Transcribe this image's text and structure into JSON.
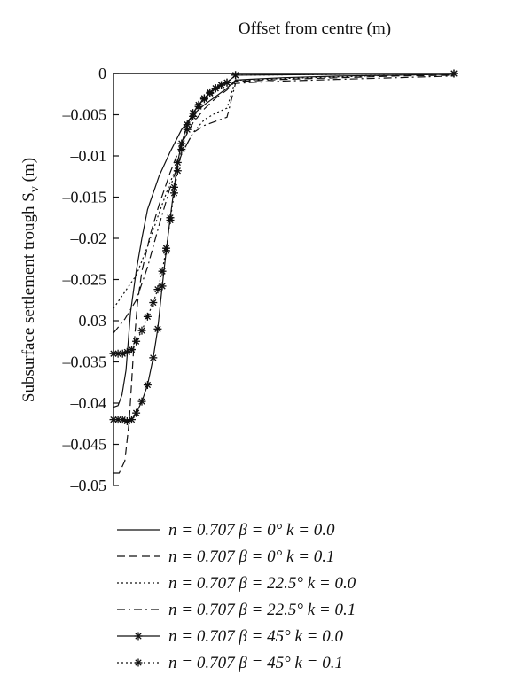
{
  "chart_data": {
    "type": "line",
    "title": "",
    "xlabel": "Offset from centre (m)",
    "ylabel_main": "Subsurface settlement trough S",
    "ylabel_sub": "v",
    "ylabel_unit": " (m)",
    "x_axis_position": "top",
    "xticks_shown": false,
    "xlim": [
      0,
      60
    ],
    "ylim": [
      -0.05,
      0
    ],
    "yticks": [
      0,
      -0.005,
      -0.01,
      -0.015,
      -0.02,
      -0.025,
      -0.03,
      -0.035,
      -0.04,
      -0.045,
      -0.05
    ],
    "ytick_labels": [
      "0",
      "–0.005",
      "–0.01",
      "–0.015",
      "–0.02",
      "–0.025",
      "–0.03",
      "–0.035",
      "–0.04",
      "–0.045",
      "–0.05"
    ],
    "grid": false,
    "legend_position": "bottom",
    "series": [
      {
        "name": "n = 0.707 β = 0° k = 0.0",
        "style": "solid",
        "marker": "none",
        "x": [
          0,
          0.8,
          1.5,
          2.2,
          3,
          4,
          5,
          6,
          8,
          10,
          12,
          14,
          16,
          18,
          20,
          21.5,
          24,
          30,
          40,
          50,
          60
        ],
        "y": [
          -0.0405,
          -0.0403,
          -0.039,
          -0.036,
          -0.029,
          -0.024,
          -0.02,
          -0.0165,
          -0.0125,
          -0.0095,
          -0.0068,
          -0.005,
          -0.0038,
          -0.0028,
          -0.0018,
          -0.0008,
          -0.0007,
          -0.0005,
          -0.0003,
          -0.0002,
          -0.0001
        ]
      },
      {
        "name": "n = 0.707 β = 0° k = 0.1",
        "style": "dashed",
        "marker": "none",
        "x": [
          0,
          1,
          2,
          2.8,
          3.5,
          4.2,
          5,
          6.5,
          8,
          10,
          12,
          14,
          16,
          18,
          20,
          21.5,
          24,
          30,
          40,
          50,
          60
        ],
        "y": [
          -0.0485,
          -0.0485,
          -0.047,
          -0.042,
          -0.034,
          -0.028,
          -0.024,
          -0.0195,
          -0.016,
          -0.012,
          -0.0085,
          -0.006,
          -0.0043,
          -0.003,
          -0.002,
          -0.0009,
          -0.0009,
          -0.0007,
          -0.0005,
          -0.0003,
          -0.0002
        ]
      },
      {
        "name": "n = 0.707 β = 22.5° k = 0.0",
        "style": "dotted",
        "marker": "none",
        "x": [
          0,
          2,
          4,
          6,
          8,
          10,
          12,
          14,
          16,
          18,
          20,
          21.5,
          24,
          30,
          40,
          50,
          60
        ],
        "y": [
          -0.0285,
          -0.0265,
          -0.0245,
          -0.021,
          -0.017,
          -0.0132,
          -0.0098,
          -0.0072,
          -0.0056,
          -0.0048,
          -0.0042,
          -0.0008,
          -0.0008,
          -0.0006,
          -0.0004,
          -0.0002,
          -0.0001
        ]
      },
      {
        "name": "n = 0.707 β = 22.5° k = 0.1",
        "style": "dashdot",
        "marker": "none",
        "x": [
          0,
          2,
          4,
          6,
          8,
          10,
          12,
          14,
          16,
          18,
          20,
          21.5,
          24,
          30,
          40,
          50,
          60
        ],
        "y": [
          -0.0315,
          -0.0298,
          -0.0275,
          -0.0235,
          -0.0185,
          -0.0138,
          -0.0098,
          -0.0072,
          -0.0063,
          -0.0058,
          -0.0053,
          -0.0012,
          -0.0011,
          -0.0009,
          -0.0007,
          -0.0005,
          -0.0003
        ]
      },
      {
        "name": "n = 0.707 β = 45° k = 0.0",
        "style": "solid",
        "marker": "star",
        "x": [
          0,
          0.8,
          1.6,
          2.4,
          3.2,
          4,
          5,
          6,
          7,
          7.8,
          8.6,
          9.3,
          10,
          10.7,
          11.3,
          12,
          13,
          14,
          15,
          16,
          17,
          18,
          19,
          20,
          21.5,
          60
        ],
        "y": [
          -0.042,
          -0.042,
          -0.042,
          -0.0422,
          -0.042,
          -0.0412,
          -0.0398,
          -0.0378,
          -0.0345,
          -0.031,
          -0.0258,
          -0.0215,
          -0.0175,
          -0.0138,
          -0.0108,
          -0.0085,
          -0.0062,
          -0.0048,
          -0.0038,
          -0.003,
          -0.0023,
          -0.0018,
          -0.0014,
          -0.0011,
          -0.0002,
          0
        ]
      },
      {
        "name": "n = 0.707 β = 45° k = 0.1",
        "style": "dotted",
        "marker": "star",
        "x": [
          0,
          0.8,
          1.6,
          2.4,
          3.2,
          4,
          5,
          6,
          7,
          7.8,
          8.6,
          9.3,
          10,
          10.7,
          11.3,
          12,
          13,
          14,
          15,
          16,
          17,
          18,
          19,
          20,
          21.5,
          60
        ],
        "y": [
          -0.034,
          -0.034,
          -0.034,
          -0.0338,
          -0.0335,
          -0.0325,
          -0.0312,
          -0.0295,
          -0.0278,
          -0.0262,
          -0.024,
          -0.0212,
          -0.0178,
          -0.0145,
          -0.0118,
          -0.0092,
          -0.0068,
          -0.0052,
          -0.004,
          -0.0031,
          -0.0024,
          -0.0018,
          -0.0014,
          -0.0011,
          -0.0002,
          0
        ]
      }
    ]
  }
}
